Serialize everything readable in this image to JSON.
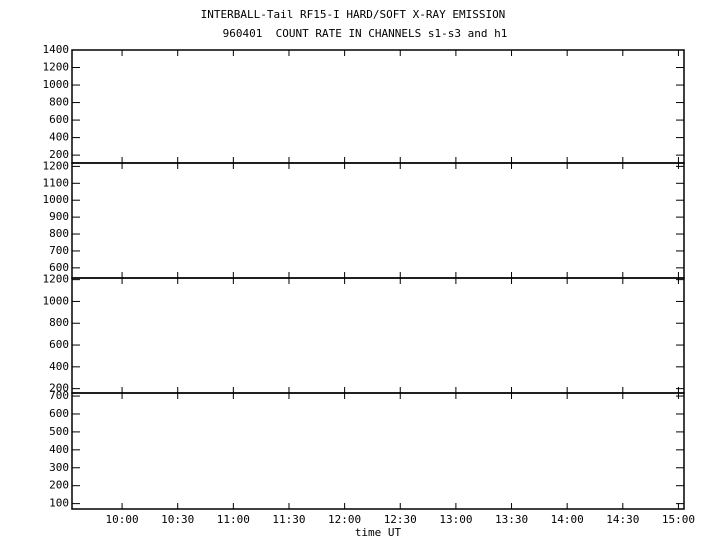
{
  "chart_data": [
    {
      "type": "line",
      "title": "INTERBALL-Tail RF15-I HARD/SOFT X-RAY EMISSION",
      "subtitle": "960401  COUNT RATE IN CHANNELS s1-s3 and h1",
      "ylim": [
        110,
        1400
      ],
      "yticks": [
        200,
        400,
        600,
        800,
        1000,
        1200,
        1400
      ]
    },
    {
      "type": "line",
      "ylim": [
        540,
        1220
      ],
      "yticks": [
        600,
        700,
        800,
        900,
        1000,
        1100,
        1200
      ]
    },
    {
      "type": "line",
      "ylim": [
        160,
        1215
      ],
      "yticks": [
        200,
        400,
        600,
        800,
        1000,
        1200
      ]
    },
    {
      "type": "line",
      "ylim": [
        70,
        717
      ],
      "yticks": [
        100,
        200,
        300,
        400,
        500,
        600,
        700
      ],
      "xlabel": "time UT",
      "xlim": [
        9.55,
        15.05
      ],
      "xticks": [
        {
          "value": 10,
          "label": "10:00"
        },
        {
          "value": 10.5,
          "label": "10:30"
        },
        {
          "value": 11,
          "label": "11:00"
        },
        {
          "value": 11.5,
          "label": "11:30"
        },
        {
          "value": 12,
          "label": "12:00"
        },
        {
          "value": 12.5,
          "label": "12:30"
        },
        {
          "value": 13,
          "label": "13:00"
        },
        {
          "value": 13.5,
          "label": "13:30"
        },
        {
          "value": 14,
          "label": "14:00"
        },
        {
          "value": 14.5,
          "label": "14:30"
        },
        {
          "value": 15,
          "label": "15:00"
        }
      ]
    }
  ]
}
